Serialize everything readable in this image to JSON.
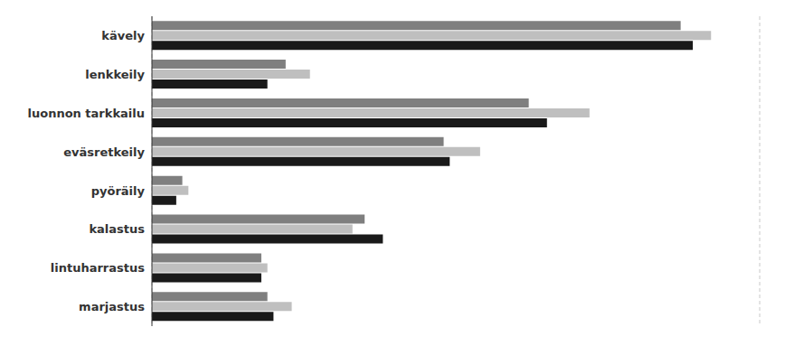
{
  "chart_data": {
    "type": "bar",
    "orientation": "horizontal",
    "categories": [
      "kävely",
      "lenkkeily",
      "luonnon tarkkailu",
      "eväsretkeily",
      "pyöräily",
      "kalastus",
      "lintuharrastus",
      "marjastus"
    ],
    "series": [
      {
        "color": "#7f7f7f",
        "values": [
          87,
          22,
          62,
          48,
          5,
          35,
          18,
          19
        ]
      },
      {
        "color": "#bfbfbf",
        "values": [
          92,
          26,
          72,
          54,
          6,
          33,
          19,
          23
        ]
      },
      {
        "color": "#1a1a1a",
        "values": [
          89,
          19,
          65,
          49,
          4,
          38,
          18,
          20
        ]
      }
    ],
    "xlim": [
      0,
      100
    ],
    "xticks": [
      0,
      20,
      40,
      60,
      80,
      100
    ],
    "grid": true,
    "tick_labels": "y"
  }
}
